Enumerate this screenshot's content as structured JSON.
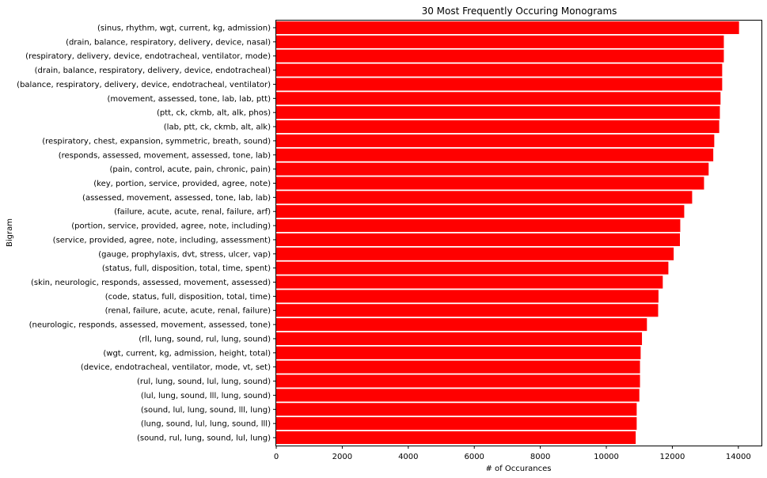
{
  "chart_data": {
    "type": "bar",
    "orientation": "horizontal",
    "title": "30 Most Frequently Occuring Monograms",
    "xlabel": "# of Occurances",
    "ylabel": "Bigram",
    "xlim": [
      0,
      14700
    ],
    "xticks": [
      0,
      2000,
      4000,
      6000,
      8000,
      10000,
      12000,
      14000
    ],
    "grid": false,
    "bar_color": "#ff0000",
    "categories": [
      "(sinus, rhythm, wgt, current, kg, admission)",
      "(drain, balance, respiratory, delivery, device, nasal)",
      "(respiratory, delivery, device, endotracheal, ventilator, mode)",
      "(drain, balance, respiratory, delivery, device, endotracheal)",
      "(balance, respiratory, delivery, device, endotracheal, ventilator)",
      "(movement, assessed, tone, lab, lab, ptt)",
      "(ptt, ck, ckmb, alt, alk, phos)",
      "(lab, ptt, ck, ckmb, alt, alk)",
      "(respiratory, chest, expansion, symmetric, breath, sound)",
      "(responds, assessed, movement, assessed, tone, lab)",
      "(pain, control, acute, pain, chronic, pain)",
      "(key, portion, service, provided, agree, note)",
      "(assessed, movement, assessed, tone, lab, lab)",
      "(failure, acute, acute, renal, failure, arf)",
      "(portion, service, provided, agree, note, including)",
      "(service, provided, agree, note, including, assessment)",
      "(gauge, prophylaxis, dvt, stress, ulcer, vap)",
      "(status, full, disposition, total, time, spent)",
      "(skin, neurologic, responds, assessed, movement, assessed)",
      "(code, status, full, disposition, total, time)",
      "(renal, failure, acute, acute, renal, failure)",
      "(neurologic, responds, assessed, movement, assessed, tone)",
      "(rll, lung, sound, rul, lung, sound)",
      "(wgt, current, kg, admission, height, total)",
      "(device, endotracheal, ventilator, mode, vt, set)",
      "(rul, lung, sound, lul, lung, sound)",
      "(lul, lung, sound, lll, lung, sound)",
      "(sound, lul, lung, sound, lll, lung)",
      "(lung, sound, lul, lung, sound, lll)",
      "(sound, rul, lung, sound, lul, lung)"
    ],
    "values": [
      14020,
      13560,
      13560,
      13510,
      13510,
      13460,
      13440,
      13420,
      13270,
      13240,
      13100,
      12960,
      12600,
      12360,
      12240,
      12230,
      12040,
      11880,
      11710,
      11580,
      11570,
      11230,
      11080,
      11040,
      11020,
      11020,
      11000,
      10920,
      10920,
      10890
    ]
  }
}
